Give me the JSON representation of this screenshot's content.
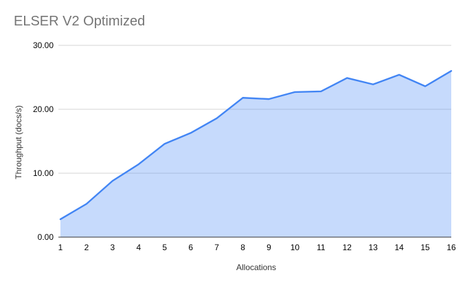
{
  "chart_data": {
    "type": "area",
    "title": "ELSER V2 Optimized",
    "xlabel": "Allocations",
    "ylabel": "Throughput (docs/s)",
    "x": [
      1,
      2,
      3,
      4,
      5,
      6,
      7,
      8,
      9,
      10,
      11,
      12,
      13,
      14,
      15,
      16
    ],
    "values": [
      2.8,
      5.2,
      8.8,
      11.4,
      14.6,
      16.3,
      18.6,
      21.8,
      21.6,
      22.7,
      22.8,
      24.9,
      23.9,
      25.4,
      23.6,
      26.0
    ],
    "ylim": [
      0,
      30
    ],
    "ytick_values": [
      0,
      10,
      20,
      30
    ],
    "yticks": [
      "0.00",
      "10.00",
      "20.00",
      "30.00"
    ],
    "grid": "horizontal-major",
    "legend": "none",
    "fill_opacity": 0.3,
    "colors": {
      "series_line": "#4285f4",
      "series_fill": "#4285f4",
      "gridline": "#d6d6d6",
      "axis_line": "#333333",
      "title_text": "#757575",
      "tick_text": "#000000",
      "axis_title_text": "#333333"
    }
  }
}
